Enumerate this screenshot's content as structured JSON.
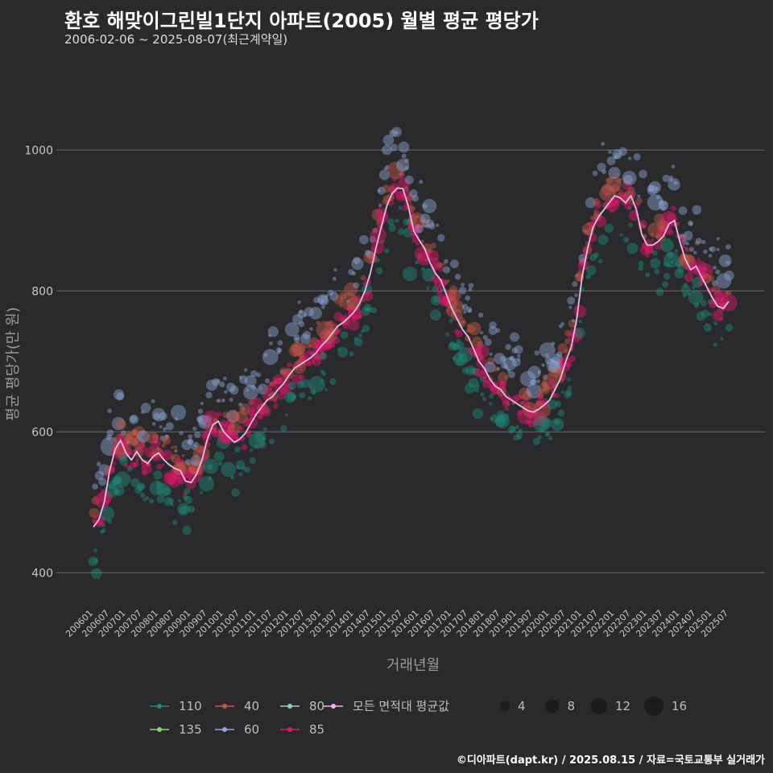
{
  "title": "환호 해맞이그린빌1단지 아파트(2005) 월별 평균 평당가",
  "subtitle": "2006-02-06 ~ 2025-08-07(최근계약일)",
  "footer": "©디아파트(dapt.kr) / 2025.08.15 / 자료=국토교통부 실거래가",
  "chart_data": {
    "type": "scatter",
    "xlabel": "거래년월",
    "ylabel": "평균 평당가(만 원)",
    "ylim": [
      350,
      1110
    ],
    "yticks": [
      400,
      600,
      800,
      1000
    ],
    "x_tick_labels": [
      "200601",
      "200607",
      "200701",
      "200707",
      "200801",
      "200807",
      "200901",
      "200907",
      "201001",
      "201007",
      "201101",
      "201107",
      "201201",
      "201207",
      "201301",
      "201307",
      "201401",
      "201407",
      "201501",
      "201507",
      "201601",
      "201607",
      "201701",
      "201707",
      "201801",
      "201807",
      "201901",
      "201907",
      "202001",
      "202007",
      "202101",
      "202107",
      "202201",
      "202207",
      "202301",
      "202307",
      "202401",
      "202407",
      "202501",
      "202507"
    ],
    "grid": true,
    "legend_placement": "bottom",
    "series": [
      {
        "name": "110",
        "color": "#1f8a7a"
      },
      {
        "name": "135",
        "color": "#8bd46a"
      },
      {
        "name": "40",
        "color": "#c0574a"
      },
      {
        "name": "60",
        "color": "#8fa6d6"
      },
      {
        "name": "80",
        "color": "#8fcfc3"
      },
      {
        "name": "85",
        "color": "#e0186a"
      }
    ],
    "average_line": {
      "name": "모든 면적대 평균값",
      "color": "#f0b8e8",
      "points": [
        [
          "200601",
          465
        ],
        [
          "200603",
          475
        ],
        [
          "200605",
          500
        ],
        [
          "200607",
          545
        ],
        [
          "200609",
          575
        ],
        [
          "200611",
          588
        ],
        [
          "200701",
          570
        ],
        [
          "200703",
          560
        ],
        [
          "200705",
          572
        ],
        [
          "200707",
          560
        ],
        [
          "200709",
          555
        ],
        [
          "200711",
          565
        ],
        [
          "200801",
          570
        ],
        [
          "200803",
          560
        ],
        [
          "200805",
          553
        ],
        [
          "200807",
          548
        ],
        [
          "200809",
          545
        ],
        [
          "200811",
          530
        ],
        [
          "200901",
          528
        ],
        [
          "200903",
          540
        ],
        [
          "200905",
          560
        ],
        [
          "200907",
          590
        ],
        [
          "200909",
          610
        ],
        [
          "200911",
          615
        ],
        [
          "201001",
          600
        ],
        [
          "201003",
          592
        ],
        [
          "201005",
          585
        ],
        [
          "201007",
          590
        ],
        [
          "201009",
          598
        ],
        [
          "201011",
          612
        ],
        [
          "201101",
          625
        ],
        [
          "201103",
          635
        ],
        [
          "201105",
          645
        ],
        [
          "201107",
          650
        ],
        [
          "201109",
          660
        ],
        [
          "201111",
          668
        ],
        [
          "201201",
          680
        ],
        [
          "201203",
          690
        ],
        [
          "201205",
          695
        ],
        [
          "201207",
          700
        ],
        [
          "201209",
          705
        ],
        [
          "201211",
          712
        ],
        [
          "201301",
          722
        ],
        [
          "201303",
          730
        ],
        [
          "201305",
          740
        ],
        [
          "201307",
          750
        ],
        [
          "201309",
          755
        ],
        [
          "201311",
          762
        ],
        [
          "201401",
          770
        ],
        [
          "201403",
          782
        ],
        [
          "201405",
          800
        ],
        [
          "201407",
          825
        ],
        [
          "201409",
          860
        ],
        [
          "201411",
          890
        ],
        [
          "201501",
          920
        ],
        [
          "201503",
          938
        ],
        [
          "201505",
          946
        ],
        [
          "201507",
          945
        ],
        [
          "201509",
          920
        ],
        [
          "201511",
          885
        ],
        [
          "201601",
          872
        ],
        [
          "201603",
          860
        ],
        [
          "201605",
          840
        ],
        [
          "201607",
          825
        ],
        [
          "201609",
          815
        ],
        [
          "201611",
          795
        ],
        [
          "201701",
          775
        ],
        [
          "201703",
          760
        ],
        [
          "201705",
          745
        ],
        [
          "201707",
          735
        ],
        [
          "201709",
          718
        ],
        [
          "201711",
          700
        ],
        [
          "201801",
          690
        ],
        [
          "201803",
          675
        ],
        [
          "201805",
          665
        ],
        [
          "201807",
          660
        ],
        [
          "201809",
          650
        ],
        [
          "201811",
          645
        ],
        [
          "201901",
          640
        ],
        [
          "201903",
          635
        ],
        [
          "201905",
          630
        ],
        [
          "201907",
          628
        ],
        [
          "201909",
          632
        ],
        [
          "201911",
          638
        ],
        [
          "202001",
          645
        ],
        [
          "202003",
          660
        ],
        [
          "202005",
          675
        ],
        [
          "202007",
          700
        ],
        [
          "202009",
          720
        ],
        [
          "202011",
          760
        ],
        [
          "202101",
          820
        ],
        [
          "202103",
          860
        ],
        [
          "202105",
          890
        ],
        [
          "202107",
          905
        ],
        [
          "202109",
          915
        ],
        [
          "202111",
          925
        ],
        [
          "202201",
          935
        ],
        [
          "202203",
          932
        ],
        [
          "202205",
          925
        ],
        [
          "202207",
          935
        ],
        [
          "202209",
          915
        ],
        [
          "202211",
          880
        ],
        [
          "202301",
          865
        ],
        [
          "202303",
          865
        ],
        [
          "202305",
          870
        ],
        [
          "202307",
          878
        ],
        [
          "202309",
          895
        ],
        [
          "202311",
          900
        ],
        [
          "202401",
          870
        ],
        [
          "202403",
          845
        ],
        [
          "202405",
          830
        ],
        [
          "202407",
          835
        ],
        [
          "202409",
          820
        ],
        [
          "202411",
          805
        ],
        [
          "202501",
          790
        ],
        [
          "202503",
          778
        ],
        [
          "202505",
          775
        ],
        [
          "202507",
          785
        ]
      ]
    },
    "size_legend": [
      4,
      8,
      12,
      16
    ]
  }
}
